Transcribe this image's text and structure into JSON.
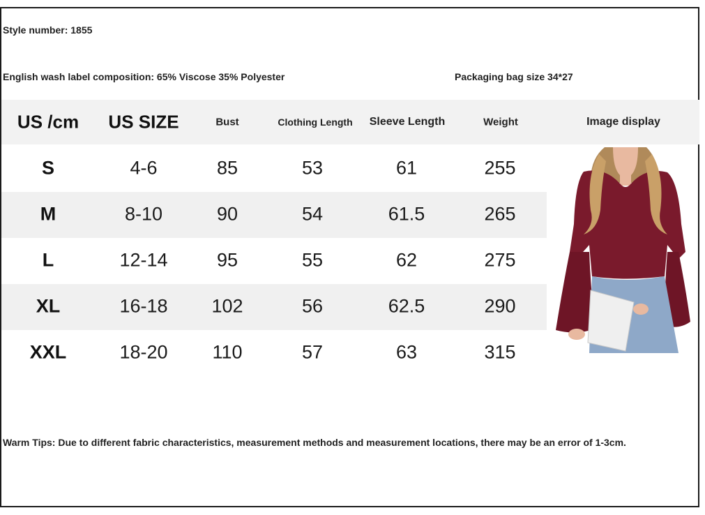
{
  "info": {
    "style_number": "Style number: 1855",
    "composition": "English wash label composition: 65% Viscose 35% Polyester",
    "packaging": "Packaging bag size 34*27"
  },
  "table": {
    "headers": [
      "US /cm",
      "US SIZE",
      "Bust",
      "Clothing Length",
      "Sleeve Length",
      "Weight",
      "Image display"
    ],
    "rows": [
      [
        "S",
        "4-6",
        "85",
        "53",
        "61",
        "255"
      ],
      [
        "M",
        "8-10",
        "90",
        "54",
        "61.5",
        "265"
      ],
      [
        "L",
        "12-14",
        "95",
        "55",
        "62",
        "275"
      ],
      [
        "XL",
        "16-18",
        "102",
        "56",
        "62.5",
        "290"
      ],
      [
        "XXL",
        "18-20",
        "110",
        "57",
        "63",
        "315"
      ]
    ]
  },
  "tips": "Warm Tips: Due to different fabric characteristics, measurement methods and measurement locations, there may be an error of 1-3cm.",
  "image": {
    "name": "product-photo-burgundy-bell-sleeve-top",
    "color": "#7a1a2c"
  }
}
